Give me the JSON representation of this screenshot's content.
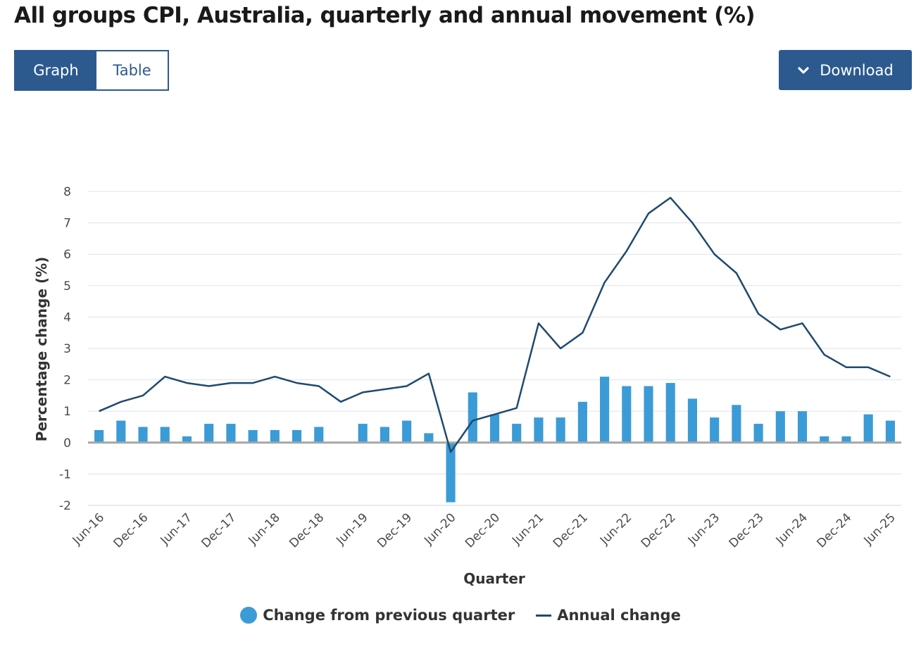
{
  "title": "All groups CPI, Australia, quarterly and annual movement (%)",
  "toggle": {
    "graph_label": "Graph",
    "table_label": "Table"
  },
  "download": {
    "label": "Download",
    "icon": "chevron-down-icon"
  },
  "colors": {
    "accent": "#2c5a8e",
    "bar": "#3b9bd6",
    "line": "#1f4a6e",
    "grid": "#dde3ea",
    "zero": "#a6a6a6"
  },
  "chart_data": {
    "type": "bar",
    "title": "All groups CPI, Australia, quarterly and annual movement (%)",
    "xlabel": "Quarter",
    "ylabel": "Percentage change (%)",
    "ylim": [
      -2,
      8
    ],
    "yticks": [
      -2,
      -1,
      0,
      1,
      2,
      3,
      4,
      5,
      6,
      7,
      8
    ],
    "grid": true,
    "legend_position": "bottom",
    "categories": [
      "Jun-16",
      "Sep-16",
      "Dec-16",
      "Mar-17",
      "Jun-17",
      "Sep-17",
      "Dec-17",
      "Mar-18",
      "Jun-18",
      "Sep-18",
      "Dec-18",
      "Mar-19",
      "Jun-19",
      "Sep-19",
      "Dec-19",
      "Mar-20",
      "Jun-20",
      "Sep-20",
      "Dec-20",
      "Mar-21",
      "Jun-21",
      "Sep-21",
      "Dec-21",
      "Mar-22",
      "Jun-22",
      "Sep-22",
      "Dec-22",
      "Mar-23",
      "Jun-23",
      "Sep-23",
      "Dec-23",
      "Mar-24",
      "Jun-24",
      "Sep-24",
      "Dec-24",
      "Mar-25",
      "Jun-25"
    ],
    "xtick_labels": [
      "Jun-16",
      "Dec-16",
      "Jun-17",
      "Dec-17",
      "Jun-18",
      "Dec-18",
      "Jun-19",
      "Dec-19",
      "Jun-20",
      "Dec-20",
      "Jun-21",
      "Dec-21",
      "Jun-22",
      "Dec-22",
      "Jun-23",
      "Dec-23",
      "Jun-24",
      "Dec-24",
      "Jun-25"
    ],
    "series": [
      {
        "name": "Change from previous quarter",
        "type": "bar",
        "values": [
          0.4,
          0.7,
          0.5,
          0.5,
          0.2,
          0.6,
          0.6,
          0.4,
          0.4,
          0.4,
          0.5,
          0.0,
          0.6,
          0.5,
          0.7,
          0.3,
          -1.9,
          1.6,
          0.9,
          0.6,
          0.8,
          0.8,
          1.3,
          2.1,
          1.8,
          1.8,
          1.9,
          1.4,
          0.8,
          1.2,
          0.6,
          1.0,
          1.0,
          0.2,
          0.2,
          0.9,
          0.7
        ]
      },
      {
        "name": "Annual change",
        "type": "line",
        "values": [
          1.0,
          1.3,
          1.5,
          2.1,
          1.9,
          1.8,
          1.9,
          1.9,
          2.1,
          1.9,
          1.8,
          1.3,
          1.6,
          1.7,
          1.8,
          2.2,
          -0.3,
          0.7,
          0.9,
          1.1,
          3.8,
          3.0,
          3.5,
          5.1,
          6.1,
          7.3,
          7.8,
          7.0,
          6.0,
          5.4,
          4.1,
          3.6,
          3.8,
          2.8,
          2.4,
          2.4,
          2.1
        ]
      }
    ]
  }
}
